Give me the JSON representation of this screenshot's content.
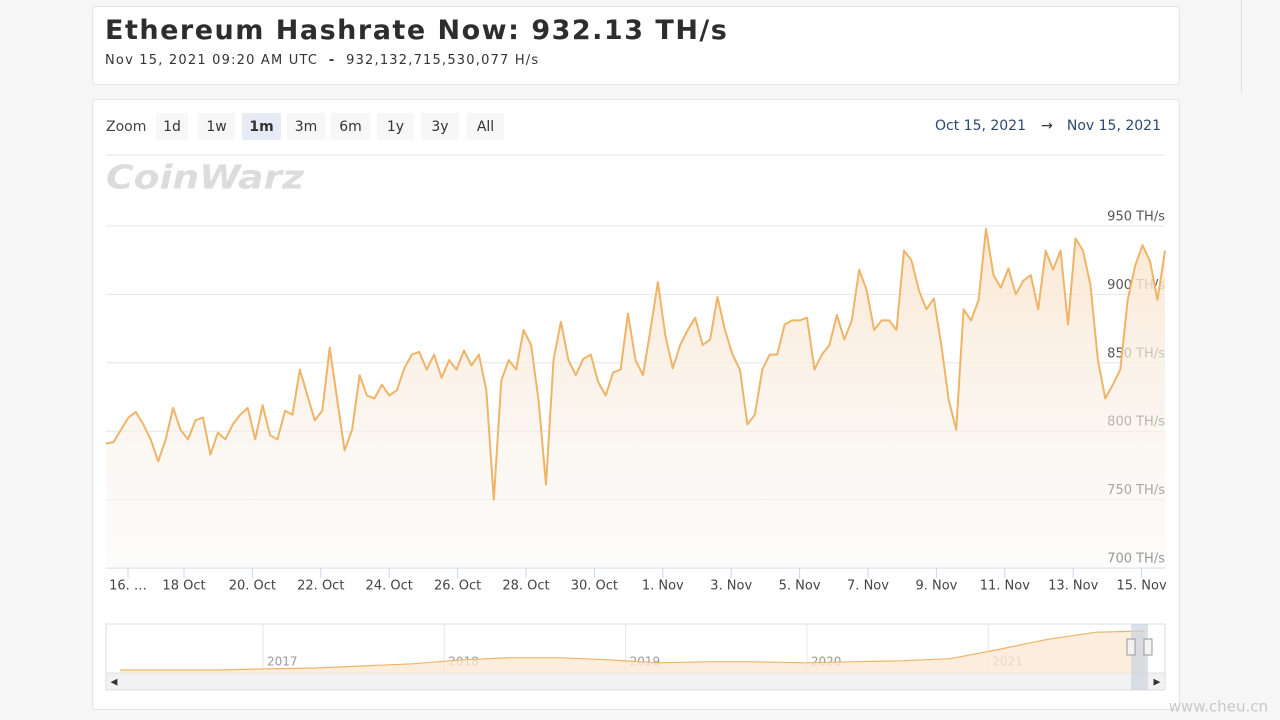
{
  "header": {
    "title": "Ethereum Hashrate Now: 932.13 TH/s",
    "date": "Nov 15, 2021 09:20 AM UTC",
    "separator": "-",
    "raw": "932,132,715,530,077 H/s"
  },
  "zoom": {
    "label": "Zoom",
    "buttons": [
      "1d",
      "1w",
      "1m",
      "3m",
      "6m",
      "1y",
      "3y",
      "All"
    ],
    "selected": 2
  },
  "range": {
    "from": "Oct 15, 2021",
    "arrow": "→",
    "to": "Nov 15, 2021"
  },
  "watermark": "CoinWarz",
  "site_watermark": "www.cheu.cn",
  "chart_data": {
    "type": "line",
    "color": "#efb467",
    "values": [
      791,
      792,
      801,
      810,
      814,
      805,
      794,
      778,
      794,
      817,
      801,
      794,
      808,
      810,
      783,
      799,
      794,
      805,
      812,
      817,
      794,
      819,
      797,
      794,
      815,
      812,
      845,
      826,
      808,
      815,
      861,
      823,
      786,
      801,
      841,
      826,
      824,
      834,
      826,
      830,
      846,
      856,
      858,
      845,
      856,
      839,
      852,
      845,
      859,
      848,
      856,
      830,
      750,
      837,
      852,
      845,
      874,
      863,
      823,
      761,
      852,
      880,
      852,
      841,
      853,
      856,
      836,
      826,
      843,
      845,
      886,
      852,
      841,
      874,
      909,
      870,
      846,
      863,
      874,
      883,
      863,
      867,
      898,
      874,
      856,
      845,
      805,
      812,
      845,
      856,
      856,
      878,
      881,
      881,
      883,
      845,
      856,
      863,
      885,
      867,
      881,
      918,
      903,
      874,
      881,
      881,
      874,
      932,
      925,
      903,
      889,
      897,
      863,
      823,
      801,
      889,
      881,
      896,
      948,
      914,
      905,
      919,
      900,
      910,
      914,
      889,
      932,
      918,
      932,
      878,
      941,
      932,
      907,
      852,
      824,
      834,
      845,
      896,
      921,
      936,
      924,
      896,
      932
    ],
    "ylim": [
      700,
      950
    ],
    "yticks": [
      {
        "value": 700,
        "label": "700 TH/s"
      },
      {
        "value": 750,
        "label": "750 TH/s"
      },
      {
        "value": 800,
        "label": "800 TH/s"
      },
      {
        "value": 850,
        "label": "850 TH/s"
      },
      {
        "value": 900,
        "label": "900 TH/s"
      },
      {
        "value": 950,
        "label": "950 TH/s"
      }
    ],
    "xtick_labels": [
      "16. …",
      "18 Oct",
      "20. Oct",
      "22. Oct",
      "24. Oct",
      "26. Oct",
      "28. Oct",
      "30. Oct",
      "1. Nov",
      "3. Nov",
      "5. Nov",
      "7. Nov",
      "9. Nov",
      "11. Nov",
      "13. Nov",
      "15. Nov"
    ],
    "grid": true,
    "navigator": {
      "years": [
        "2017",
        "2018",
        "2019",
        "2020",
        "2021"
      ],
      "values": [
        24,
        24,
        24,
        48,
        71,
        119,
        167,
        262,
        310,
        310,
        262,
        190,
        214,
        214,
        190,
        214,
        238,
        286,
        500,
        738,
        905,
        932
      ]
    }
  }
}
